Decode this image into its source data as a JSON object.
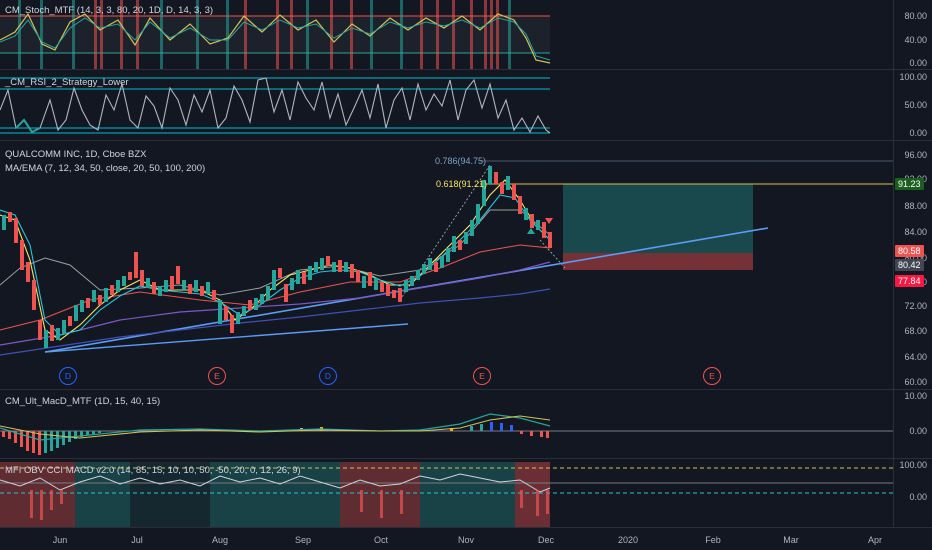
{
  "colors": {
    "bg": "#131722",
    "up": "#26a69a",
    "down": "#ef5350",
    "grid": "#2a2e39",
    "text": "#b2b5be"
  },
  "stoch": {
    "legend": "CM_Stoch_MTF (14, 3, 3, 80, 20, 1D, D, 14, 3, 3)",
    "ticks": [
      "80.00",
      "40.00",
      "0.00"
    ]
  },
  "rsi": {
    "legend": "_CM_RSI_2_Strategy_Lower",
    "ticks": [
      "100.00",
      "50.00",
      "0.00"
    ]
  },
  "main": {
    "title": "QUALCOMM INC, 1D, Cboe BZX",
    "ma_legend": "MA/EMA (7, 12, 34, 50, close, 20, 50, 100, 200)",
    "ticks": [
      "96.00",
      "92.00",
      "88.00",
      "84.00",
      "80.00",
      "76.00",
      "72.00",
      "68.00",
      "64.00",
      "60.00"
    ],
    "fib_786": "0.786(94.75)",
    "fib_618": "0.618(91.21)",
    "badges": {
      "target": "91.23",
      "price1": "80.58",
      "price2": "80.42",
      "stop": "77.84"
    },
    "events": [
      {
        "label": "D"
      },
      {
        "label": "E"
      },
      {
        "label": "D"
      },
      {
        "label": "E"
      },
      {
        "label": "E"
      }
    ]
  },
  "macd": {
    "legend": "CM_Ult_MacD_MTF (1D, 15, 40, 15)",
    "ticks": [
      "10.00",
      "0.00"
    ]
  },
  "mfi": {
    "legend": "MFI OBV CCI MACD v2.0 (14, 85, 15, 10, 10, 50, -50, 20, 0, 12, 26, 9)",
    "ticks": [
      "100.00",
      "0.00"
    ]
  },
  "xaxis": {
    "labels": [
      "Jun",
      "Jul",
      "Aug",
      "Sep",
      "Oct",
      "Nov",
      "Dec",
      "2020",
      "Feb",
      "Mar",
      "Apr"
    ]
  }
}
